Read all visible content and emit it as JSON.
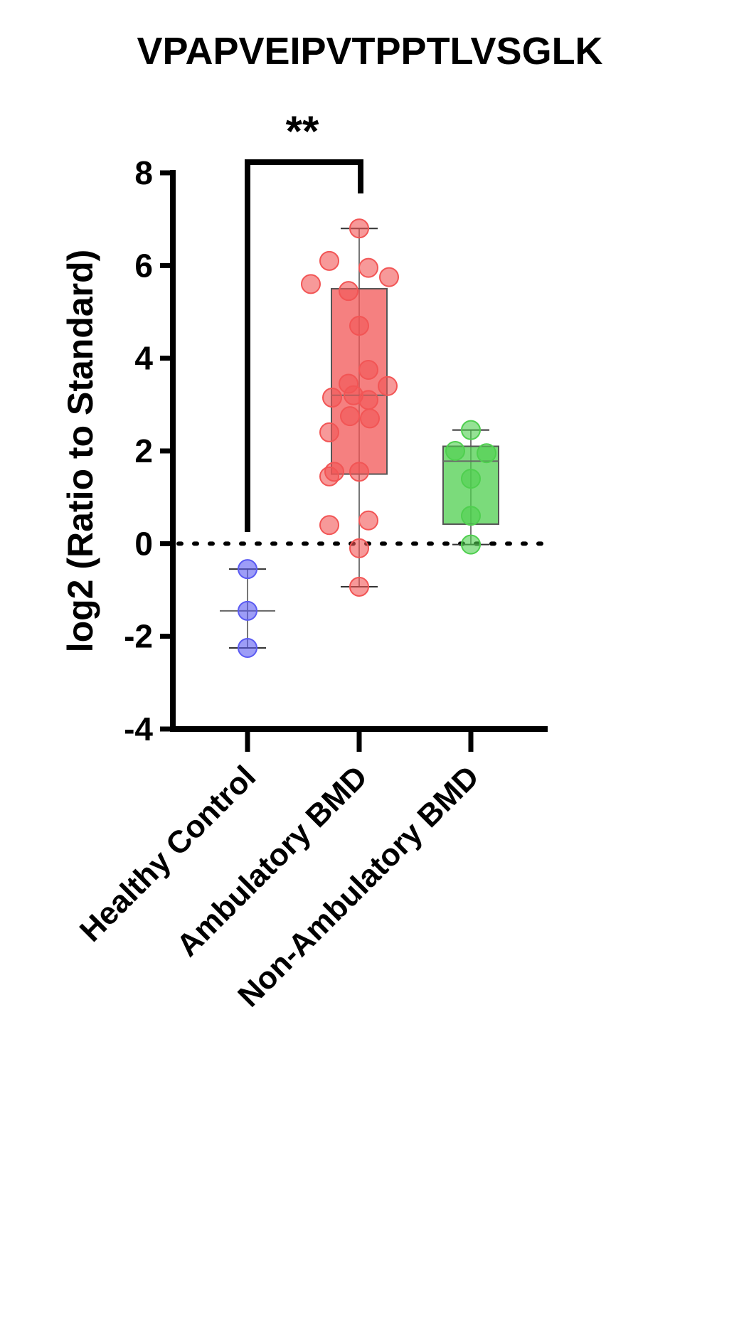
{
  "chart_data": {
    "type": "box",
    "title": "VPAPVEIPVTPPTLVSGLK",
    "y_label": "log2 (Ratio to Standard)",
    "categories": [
      "Healthy Control",
      "Ambulatory BMD",
      "Non-Ambulatory BMD"
    ],
    "boxes": [
      {
        "color": "#5b5bf2",
        "points": [
          -0.55,
          -1.45,
          -2.25
        ],
        "min": -2.25,
        "q1": -2.25,
        "median": -1.45,
        "q3": -0.55,
        "max": -0.55
      },
      {
        "color": "#f25555",
        "points": [
          6.8,
          6.1,
          5.95,
          5.6,
          5.75,
          5.45,
          4.7,
          3.75,
          3.45,
          3.4,
          3.15,
          3.2,
          3.1,
          2.75,
          2.7,
          2.4,
          1.55,
          1.55,
          1.45,
          0.5,
          0.4,
          -0.1,
          -0.93
        ],
        "min": -0.93,
        "q1": 1.5,
        "median": 3.2,
        "q3": 5.5,
        "max": 6.8
      },
      {
        "color": "#4fcf4f",
        "points": [
          2.45,
          2.0,
          1.95,
          1.4,
          0.6,
          -0.02
        ],
        "min": -0.02,
        "q1": 0.42,
        "median": 1.78,
        "q3": 2.1,
        "max": 2.45
      }
    ],
    "reference_line": 0,
    "annotation": "**",
    "ylim": [
      -4,
      8
    ],
    "yticks": [
      -4,
      -2,
      0,
      2,
      4,
      6,
      8
    ]
  }
}
